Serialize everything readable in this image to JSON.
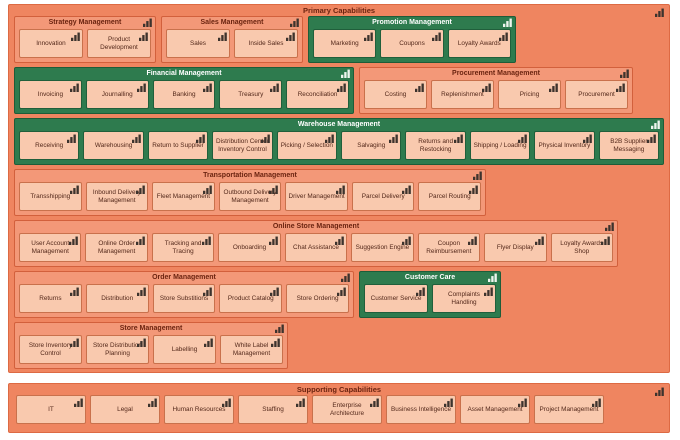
{
  "colors": {
    "canvas": "#ffffff",
    "container": "#ef8560",
    "container_border": "#dd6a43",
    "group_orange": "#f39878",
    "group_orange_border": "#d2603c",
    "group_green": "#2e7b4e",
    "group_green_border": "#1e5c38",
    "leaf": "#f9c9ae",
    "leaf_border": "#c9714c",
    "title_text": "#6b2410",
    "green_title_text": "#ffffff",
    "leaf_text": "#53281a",
    "icon_dark": "#3d332d",
    "icon_light": "#eef5ee"
  },
  "icons": {
    "corner_icon": "bar-chart-icon"
  },
  "primary": {
    "title": "Primary Capabilities",
    "rows": [
      {
        "groups": [
          {
            "title": "Strategy Management",
            "variant": "orange",
            "items": [
              "Innovation",
              "Product Development"
            ]
          },
          {
            "title": "Sales Management",
            "variant": "orange",
            "items": [
              "Sales",
              "Inside Sales"
            ]
          },
          {
            "title": "Promotion Management",
            "variant": "green",
            "items": [
              "Marketing",
              "Coupons",
              "Loyalty Awards"
            ]
          }
        ]
      },
      {
        "groups": [
          {
            "title": "Financial Management",
            "variant": "green",
            "items": [
              "Invoicing",
              "Journalling",
              "Banking",
              "Treasury",
              "Reconciliation"
            ]
          },
          {
            "title": "Procurement Management",
            "variant": "orange",
            "items": [
              "Costing",
              "Replenishment",
              "Pricing",
              "Procurement"
            ]
          }
        ]
      },
      {
        "groups": [
          {
            "title": "Warehouse Management",
            "variant": "green",
            "items": [
              "Receiving",
              "Warehousing",
              "Return to Supplier",
              "Distribution Center Inventory Control",
              "Picking / Selection",
              "Salvaging",
              "Returns and Restocking",
              "Shipping / Loading",
              "Physical Inventory",
              "B2B Supplier Messaging"
            ]
          }
        ]
      },
      {
        "groups": [
          {
            "title": "Transportation Management",
            "variant": "orange",
            "items": [
              "Transshipping",
              "Inbound Delivery Management",
              "Fleet Management",
              "Outbound Delivery Management",
              "Driver Management",
              "Parcel Delivery",
              "Parcel Routing"
            ]
          }
        ]
      },
      {
        "groups": [
          {
            "title": "Online Store Management",
            "variant": "orange",
            "items": [
              "User Account Management",
              "Online Order Management",
              "Tracking and Tracing",
              "Onboarding",
              "Chat Assistance",
              "Suggestion Engine",
              "Coupon Reimbursement",
              "Flyer Display",
              "Loyalty Awards Shop"
            ]
          }
        ]
      },
      {
        "groups": [
          {
            "title": "Order Management",
            "variant": "orange",
            "items": [
              "Returns",
              "Distribution",
              "Store Substitions",
              "Product Catalog",
              "Store Ordering"
            ]
          },
          {
            "title": "Customer Care",
            "variant": "green",
            "items": [
              "Customer Service",
              "Complaints Handling"
            ]
          }
        ]
      },
      {
        "groups": [
          {
            "title": "Store Management",
            "variant": "orange",
            "items": [
              "Store Inventory Control",
              "Store Distribution Planning",
              "Labelling",
              "White Label Management"
            ]
          }
        ]
      }
    ]
  },
  "supporting": {
    "title": "Supporting Capabilities",
    "items": [
      "IT",
      "Legal",
      "Human Resources",
      "Staffing",
      "Enterprise Architecture",
      "Business Intelligence",
      "Asset Management",
      "Project Management"
    ]
  }
}
